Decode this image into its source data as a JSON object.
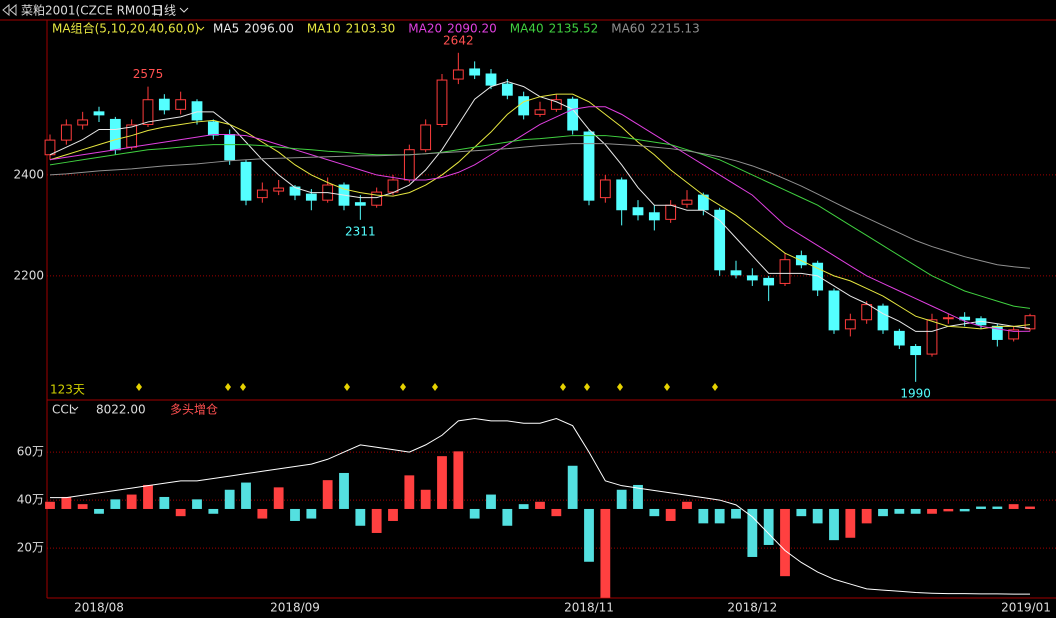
{
  "chart_data": {
    "type": "candlestick",
    "title": "菜粕2001(CZCE RM001)",
    "period": "日线",
    "ma_group": "MA组合(5,10,20,40,60,0)",
    "day_count": "123天",
    "categories": [
      null,
      null,
      null,
      "2018/08",
      null,
      null,
      null,
      null,
      null,
      null,
      null,
      null,
      null,
      null,
      null,
      "2018/09",
      null,
      null,
      null,
      null,
      null,
      null,
      null,
      null,
      null,
      null,
      null,
      null,
      null,
      null,
      null,
      null,
      null,
      "2018/11",
      null,
      null,
      null,
      null,
      null,
      null,
      null,
      null,
      null,
      "2018/12",
      null,
      null,
      null,
      null,
      null,
      null,
      null,
      null,
      null,
      null,
      null,
      null,
      null,
      null,
      null,
      null,
      "2019/01"
    ],
    "candles": [
      [
        2440,
        2480,
        2430,
        2469
      ],
      [
        2469,
        2510,
        2460,
        2499
      ],
      [
        2499,
        2525,
        2490,
        2509
      ],
      [
        2525,
        2535,
        2505,
        2519
      ],
      [
        2510,
        2515,
        2440,
        2450
      ],
      [
        2455,
        2510,
        2450,
        2499
      ],
      [
        2500,
        2575,
        2495,
        2549
      ],
      [
        2550,
        2560,
        2520,
        2529
      ],
      [
        2530,
        2565,
        2520,
        2549
      ],
      [
        2545,
        2550,
        2500,
        2509
      ],
      [
        2505,
        2510,
        2470,
        2479
      ],
      [
        2480,
        2490,
        2420,
        2430
      ],
      [
        2425,
        2430,
        2340,
        2350
      ],
      [
        2355,
        2385,
        2345,
        2370
      ],
      [
        2368,
        2390,
        2360,
        2374
      ],
      [
        2376,
        2380,
        2350,
        2360
      ],
      [
        2362,
        2372,
        2330,
        2350
      ],
      [
        2350,
        2395,
        2345,
        2380
      ],
      [
        2380,
        2385,
        2330,
        2340
      ],
      [
        2345,
        2360,
        2311,
        2340
      ],
      [
        2340,
        2375,
        2335,
        2366
      ],
      [
        2366,
        2400,
        2360,
        2390
      ],
      [
        2390,
        2460,
        2385,
        2450
      ],
      [
        2450,
        2510,
        2445,
        2499
      ],
      [
        2500,
        2600,
        2495,
        2588
      ],
      [
        2590,
        2642,
        2580,
        2608
      ],
      [
        2610,
        2625,
        2590,
        2598
      ],
      [
        2600,
        2610,
        2570,
        2578
      ],
      [
        2580,
        2590,
        2550,
        2558
      ],
      [
        2555,
        2565,
        2510,
        2519
      ],
      [
        2520,
        2545,
        2515,
        2529
      ],
      [
        2530,
        2560,
        2525,
        2549
      ],
      [
        2550,
        2555,
        2480,
        2489
      ],
      [
        2485,
        2490,
        2340,
        2350
      ],
      [
        2355,
        2400,
        2345,
        2390
      ],
      [
        2390,
        2395,
        2300,
        2331
      ],
      [
        2335,
        2350,
        2310,
        2321
      ],
      [
        2325,
        2340,
        2290,
        2311
      ],
      [
        2312,
        2350,
        2305,
        2340
      ],
      [
        2342,
        2370,
        2335,
        2350
      ],
      [
        2360,
        2365,
        2320,
        2331
      ],
      [
        2330,
        2335,
        2200,
        2212
      ],
      [
        2210,
        2230,
        2195,
        2202
      ],
      [
        2200,
        2215,
        2180,
        2192
      ],
      [
        2195,
        2200,
        2150,
        2182
      ],
      [
        2185,
        2245,
        2180,
        2232
      ],
      [
        2240,
        2250,
        2215,
        2222
      ],
      [
        2225,
        2230,
        2160,
        2172
      ],
      [
        2170,
        2175,
        2085,
        2093
      ],
      [
        2095,
        2125,
        2080,
        2113
      ],
      [
        2113,
        2150,
        2105,
        2143
      ],
      [
        2140,
        2145,
        2085,
        2093
      ],
      [
        2090,
        2095,
        2055,
        2063
      ],
      [
        2060,
        2065,
        1990,
        2044
      ],
      [
        2045,
        2125,
        2040,
        2113
      ],
      [
        2115,
        2125,
        2105,
        2117
      ],
      [
        2118,
        2128,
        2100,
        2113
      ],
      [
        2115,
        2120,
        2095,
        2103
      ],
      [
        2100,
        2105,
        2060,
        2074
      ],
      [
        2075,
        2100,
        2070,
        2093
      ],
      [
        2095,
        2125,
        2090,
        2121
      ]
    ],
    "up_color": "#ff3c3c",
    "down_color": "#54ffff",
    "price_labels": [
      2575,
      2642,
      2311,
      1990
    ],
    "series": [
      {
        "name": "MA5",
        "color": "#e8e8e8",
        "value_label": "2096.00",
        "values": [
          2440,
          2455,
          2470,
          2490,
          2490,
          2495,
          2505,
          2510,
          2515,
          2525,
          2525,
          2500,
          2465,
          2430,
          2400,
          2375,
          2365,
          2365,
          2360,
          2355,
          2355,
          2365,
          2380,
          2410,
          2450,
          2500,
          2550,
          2575,
          2585,
          2575,
          2555,
          2545,
          2530,
          2490,
          2460,
          2420,
          2375,
          2340,
          2340,
          2330,
          2330,
          2310,
          2275,
          2240,
          2205,
          2205,
          2205,
          2200,
          2180,
          2160,
          2145,
          2125,
          2110,
          2090,
          2090,
          2100,
          2105,
          2110,
          2105,
          2100,
          2096
        ]
      },
      {
        "name": "MA10",
        "color": "#e6e640",
        "value_label": "2103.30",
        "values": [
          2430,
          2440,
          2450,
          2460,
          2470,
          2478,
          2488,
          2495,
          2500,
          2505,
          2508,
          2500,
          2485,
          2465,
          2445,
          2420,
          2400,
          2385,
          2372,
          2365,
          2360,
          2358,
          2365,
          2380,
          2400,
          2425,
          2455,
          2485,
          2520,
          2545,
          2555,
          2560,
          2560,
          2545,
          2520,
          2495,
          2465,
          2440,
          2410,
          2385,
          2360,
          2340,
          2320,
          2295,
          2270,
          2245,
          2230,
          2215,
          2200,
          2190,
          2175,
          2160,
          2140,
          2120,
          2110,
          2100,
          2098,
          2095,
          2100,
          2100,
          2103.3
        ]
      },
      {
        "name": "MA20",
        "color": "#e040e0",
        "value_label": "2090.20",
        "values": [
          2430,
          2435,
          2440,
          2445,
          2450,
          2455,
          2460,
          2465,
          2470,
          2475,
          2480,
          2480,
          2478,
          2470,
          2460,
          2450,
          2440,
          2430,
          2420,
          2410,
          2400,
          2395,
          2390,
          2390,
          2395,
          2405,
          2420,
          2440,
          2460,
          2480,
          2500,
          2515,
          2530,
          2535,
          2535,
          2520,
          2500,
          2480,
          2460,
          2440,
          2420,
          2400,
          2380,
          2360,
          2330,
          2300,
          2280,
          2260,
          2240,
          2220,
          2200,
          2185,
          2170,
          2155,
          2140,
          2125,
          2110,
          2100,
          2095,
          2090,
          2090.2
        ]
      },
      {
        "name": "MA40",
        "color": "#40d040",
        "value_label": "2135.52",
        "values": [
          2420,
          2425,
          2430,
          2435,
          2440,
          2445,
          2450,
          2452,
          2455,
          2458,
          2460,
          2460,
          2460,
          2458,
          2455,
          2452,
          2450,
          2447,
          2445,
          2442,
          2440,
          2440,
          2440,
          2442,
          2445,
          2450,
          2455,
          2460,
          2465,
          2470,
          2472,
          2475,
          2478,
          2478,
          2478,
          2475,
          2470,
          2465,
          2460,
          2450,
          2440,
          2430,
          2415,
          2400,
          2385,
          2370,
          2355,
          2340,
          2320,
          2300,
          2280,
          2260,
          2240,
          2220,
          2200,
          2185,
          2170,
          2160,
          2150,
          2140,
          2135.52
        ]
      },
      {
        "name": "MA60",
        "color": "#909090",
        "value_label": "2215.13",
        "values": [
          2400,
          2402,
          2405,
          2408,
          2410,
          2412,
          2415,
          2418,
          2420,
          2422,
          2425,
          2428,
          2430,
          2432,
          2433,
          2434,
          2435,
          2436,
          2437,
          2438,
          2438,
          2439,
          2440,
          2442,
          2444,
          2446,
          2448,
          2450,
          2452,
          2455,
          2458,
          2460,
          2462,
          2462,
          2462,
          2460,
          2458,
          2455,
          2452,
          2448,
          2442,
          2436,
          2428,
          2418,
          2406,
          2392,
          2378,
          2362,
          2346,
          2330,
          2315,
          2300,
          2285,
          2270,
          2258,
          2248,
          2238,
          2230,
          2222,
          2218,
          2215.13
        ]
      }
    ],
    "ylim": [
      1954,
      2707
    ],
    "yticks": [
      2400,
      2200
    ],
    "grid": true,
    "lower": {
      "type": "bar",
      "signal": "多头增仓",
      "ylim": [
        -0.8,
        81.7
      ],
      "yticks": [
        {
          "value": 60,
          "label": "60万"
        },
        {
          "value": 40,
          "label": "40万"
        },
        {
          "value": 20,
          "label": "20万"
        }
      ],
      "y2lim": [
        -37.1,
        45.4
      ],
      "bars": {
        "axis": "y2",
        "values": [
          3,
          5,
          2,
          -2,
          4,
          6,
          10,
          5,
          -3,
          4,
          -2,
          8,
          11,
          -4,
          9,
          -5,
          -4,
          12,
          15,
          -7,
          -10,
          -5,
          14,
          8,
          22,
          24,
          -4,
          6,
          -7,
          2,
          3,
          -3,
          18,
          -22,
          -37,
          8,
          10,
          -3,
          -5,
          3,
          -6,
          -6,
          -4,
          -20,
          -15,
          -28,
          -3,
          -6,
          -13,
          -12,
          -6,
          -3,
          -2,
          -2,
          -2,
          -1,
          -1,
          1,
          1,
          2,
          1
        ]
      },
      "line": {
        "name": "CCL",
        "color": "#ffffff",
        "value_label": "8022.00",
        "values": [
          41,
          41,
          42,
          43,
          44,
          45,
          46,
          47,
          48,
          48,
          49,
          50,
          51,
          52,
          53,
          54,
          55,
          57,
          60,
          63,
          62,
          61,
          60,
          63,
          67,
          73,
          74,
          73,
          73,
          72,
          72,
          74,
          71,
          60,
          48,
          46,
          45,
          44,
          43,
          42,
          41,
          40,
          38,
          33,
          26,
          19,
          14,
          10,
          7,
          5,
          3,
          2.5,
          2,
          1.5,
          1.2,
          1,
          1,
          0.9,
          0.9,
          0.8,
          0.8022
        ]
      }
    }
  }
}
